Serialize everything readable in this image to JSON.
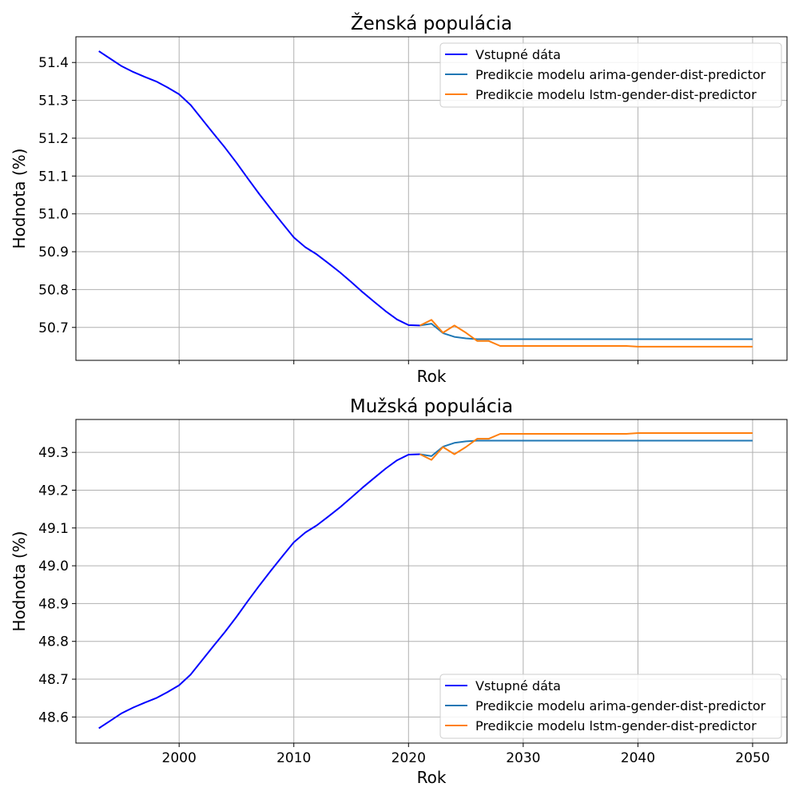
{
  "colors": {
    "input": "#0000ff",
    "arima": "#1f77b4",
    "lstm": "#ff7f0e",
    "grid": "#b0b0b0",
    "axes": "#000000"
  },
  "chart_data": [
    {
      "type": "line",
      "title": "Ženská populácia",
      "xlabel": "Rok",
      "ylabel": "Hodnota (%)",
      "show_xtick_labels": false,
      "xlim": [
        1991,
        2053
      ],
      "ylim": [
        50.613,
        51.468
      ],
      "x_ticks": [
        2000,
        2010,
        2020,
        2030,
        2040,
        2050
      ],
      "y_ticks": [
        50.7,
        50.8,
        50.9,
        51.0,
        51.1,
        51.2,
        51.3,
        51.4
      ],
      "y_tick_labels": [
        "50.7",
        "50.8",
        "50.9",
        "51.0",
        "51.1",
        "51.2",
        "51.3",
        "51.4"
      ],
      "grid": true,
      "legend_position": "top-right",
      "series": [
        {
          "name": "Vstupné dáta",
          "color_key": "input",
          "x": [
            1993,
            1994,
            1995,
            1996,
            1997,
            1998,
            1999,
            2000,
            2001,
            2002,
            2003,
            2004,
            2005,
            2006,
            2007,
            2008,
            2009,
            2010,
            2011,
            2012,
            2013,
            2014,
            2015,
            2016,
            2017,
            2018,
            2019,
            2020,
            2021
          ],
          "y": [
            51.43,
            51.41,
            51.39,
            51.375,
            51.362,
            51.35,
            51.334,
            51.316,
            51.288,
            51.25,
            51.212,
            51.175,
            51.135,
            51.093,
            51.052,
            51.013,
            50.975,
            50.938,
            50.912,
            50.893,
            50.87,
            50.846,
            50.82,
            50.793,
            50.768,
            50.743,
            50.721,
            50.706,
            50.705
          ]
        },
        {
          "name": "Predikcie modelu arima-gender-dist-predictor",
          "color_key": "arima",
          "x": [
            2021,
            2022,
            2023,
            2024,
            2025,
            2026,
            2027,
            2028,
            2029,
            2030,
            2035,
            2040,
            2045,
            2050
          ],
          "y": [
            50.705,
            50.71,
            50.685,
            50.675,
            50.671,
            50.669,
            50.669,
            50.669,
            50.669,
            50.669,
            50.669,
            50.669,
            50.669,
            50.669
          ]
        },
        {
          "name": "Predikcie modelu lstm-gender-dist-predictor",
          "color_key": "lstm",
          "x": [
            2021,
            2022,
            2023,
            2024,
            2025,
            2026,
            2027,
            2028,
            2030,
            2035,
            2039,
            2040,
            2045,
            2050
          ],
          "y": [
            50.705,
            50.72,
            50.686,
            50.705,
            50.686,
            50.664,
            50.664,
            50.651,
            50.651,
            50.651,
            50.651,
            50.649,
            50.649,
            50.649
          ]
        }
      ]
    },
    {
      "type": "line",
      "title": "Mužská populácia",
      "xlabel": "Rok",
      "ylabel": "Hodnota (%)",
      "show_xtick_labels": true,
      "xlim": [
        1991,
        2053
      ],
      "ylim": [
        48.531,
        49.387
      ],
      "x_ticks": [
        2000,
        2010,
        2020,
        2030,
        2040,
        2050
      ],
      "x_tick_labels": [
        "2000",
        "2010",
        "2020",
        "2030",
        "2040",
        "2050"
      ],
      "y_ticks": [
        48.6,
        48.7,
        48.8,
        48.9,
        49.0,
        49.1,
        49.2,
        49.3
      ],
      "y_tick_labels": [
        "48.6",
        "48.7",
        "48.8",
        "48.9",
        "49.0",
        "49.1",
        "49.2",
        "49.3"
      ],
      "grid": true,
      "legend_position": "bottom-right",
      "series": [
        {
          "name": "Vstupné dáta",
          "color_key": "input",
          "x": [
            1993,
            1994,
            1995,
            1996,
            1997,
            1998,
            1999,
            2000,
            2001,
            2002,
            2003,
            2004,
            2005,
            2006,
            2007,
            2008,
            2009,
            2010,
            2011,
            2012,
            2013,
            2014,
            2015,
            2016,
            2017,
            2018,
            2019,
            2020,
            2021
          ],
          "y": [
            48.57,
            48.59,
            48.61,
            48.625,
            48.638,
            48.65,
            48.666,
            48.684,
            48.712,
            48.75,
            48.788,
            48.825,
            48.865,
            48.907,
            48.948,
            48.987,
            49.025,
            49.062,
            49.088,
            49.107,
            49.13,
            49.154,
            49.18,
            49.207,
            49.232,
            49.257,
            49.279,
            49.294,
            49.295
          ]
        },
        {
          "name": "Predikcie modelu arima-gender-dist-predictor",
          "color_key": "arima",
          "x": [
            2021,
            2022,
            2023,
            2024,
            2025,
            2026,
            2027,
            2028,
            2029,
            2030,
            2035,
            2040,
            2045,
            2050
          ],
          "y": [
            49.295,
            49.29,
            49.315,
            49.325,
            49.329,
            49.331,
            49.331,
            49.331,
            49.331,
            49.331,
            49.331,
            49.331,
            49.331,
            49.331
          ]
        },
        {
          "name": "Predikcie modelu lstm-gender-dist-predictor",
          "color_key": "lstm",
          "x": [
            2021,
            2022,
            2023,
            2024,
            2025,
            2026,
            2027,
            2028,
            2030,
            2035,
            2039,
            2040,
            2045,
            2050
          ],
          "y": [
            49.295,
            49.28,
            49.314,
            49.295,
            49.314,
            49.336,
            49.336,
            49.349,
            49.349,
            49.349,
            49.349,
            49.351,
            49.351,
            49.351
          ]
        }
      ]
    }
  ]
}
